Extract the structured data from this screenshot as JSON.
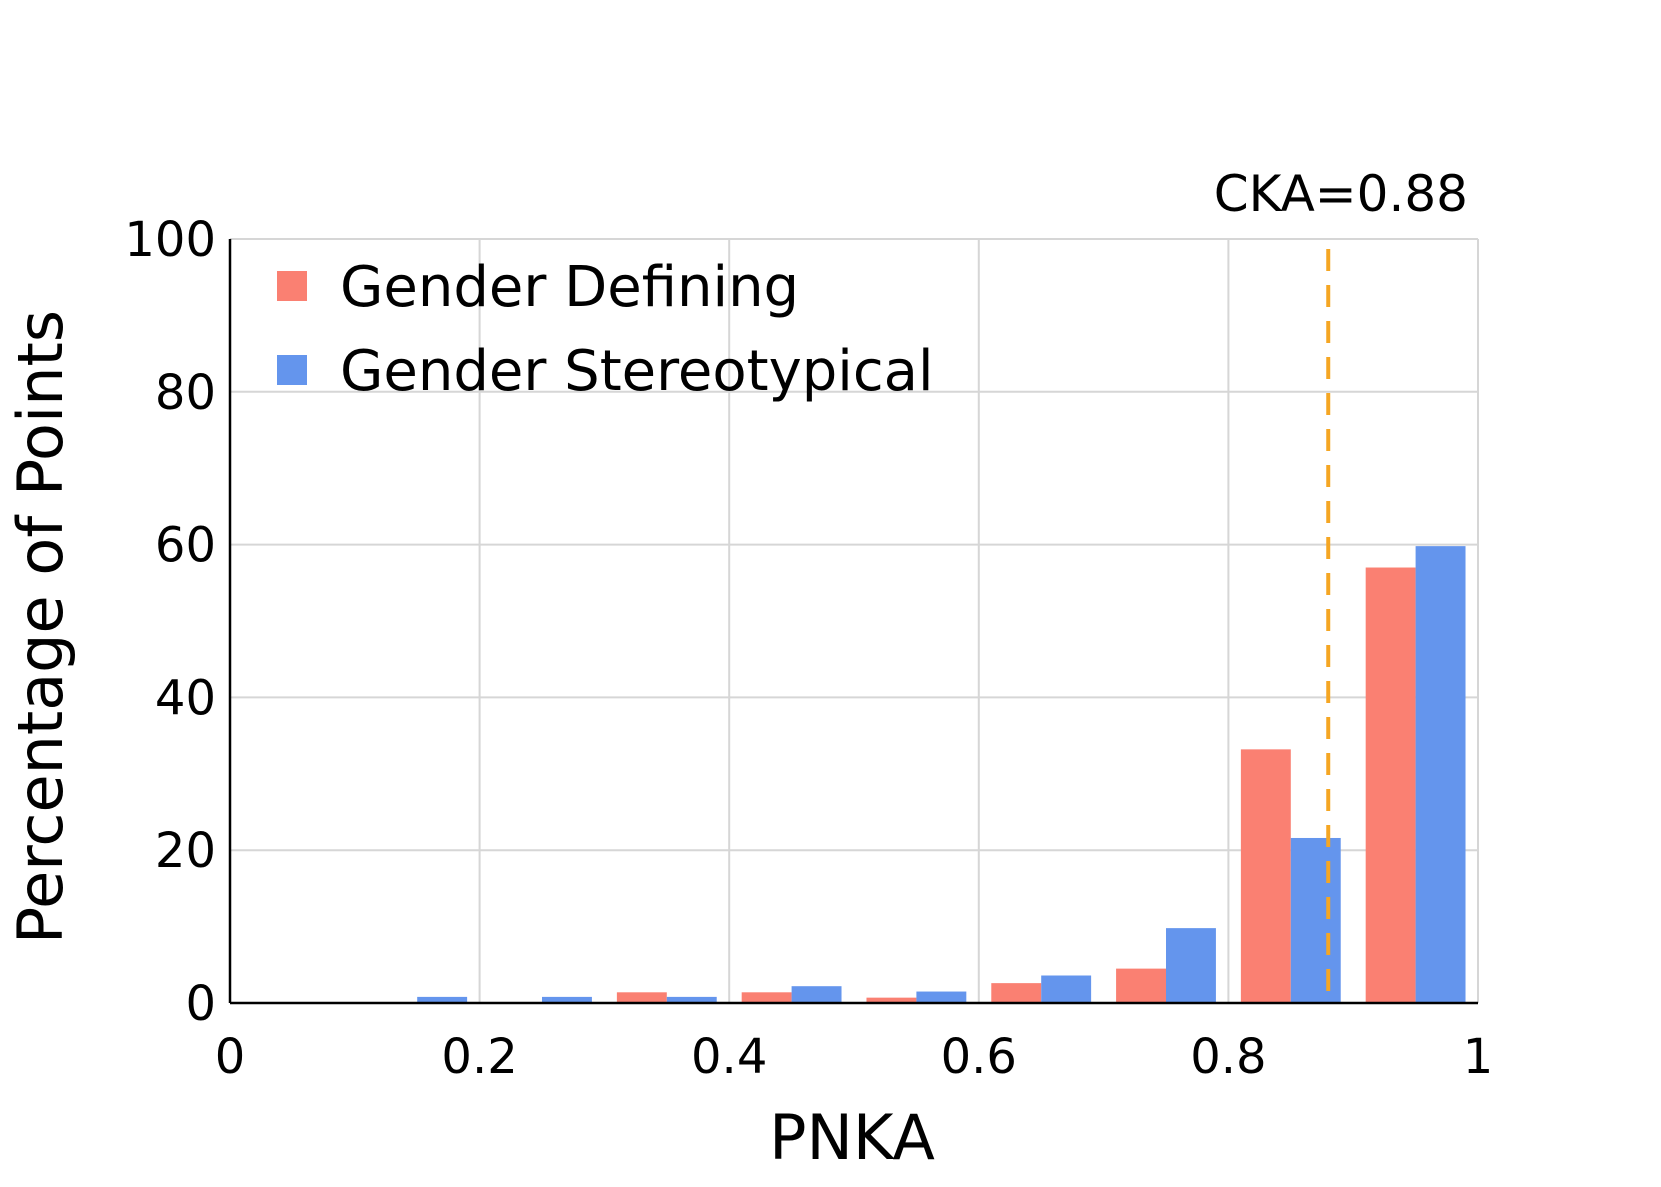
{
  "chart_data": {
    "type": "bar",
    "title": "",
    "xlabel": "PNKA",
    "ylabel": "Percentage of Points",
    "xlim": [
      0,
      1
    ],
    "ylim": [
      0,
      100
    ],
    "grid": true,
    "legend_position": "top-left",
    "x_ticks": [
      {
        "value": 0,
        "label": "0"
      },
      {
        "value": 0.2,
        "label": "0.2"
      },
      {
        "value": 0.4,
        "label": "0.4"
      },
      {
        "value": 0.6,
        "label": "0.6"
      },
      {
        "value": 0.8,
        "label": "0.8"
      },
      {
        "value": 1,
        "label": "1"
      }
    ],
    "y_ticks": [
      {
        "value": 0,
        "label": "0"
      },
      {
        "value": 20,
        "label": "20"
      },
      {
        "value": 40,
        "label": "40"
      },
      {
        "value": 60,
        "label": "60"
      },
      {
        "value": 80,
        "label": "80"
      },
      {
        "value": 100,
        "label": "100"
      }
    ],
    "bin_edges": [
      0,
      0.1,
      0.2,
      0.3,
      0.4,
      0.5,
      0.6,
      0.7,
      0.8,
      0.9,
      1.0
    ],
    "series": [
      {
        "name": "Gender Defining",
        "color": "#fa8072",
        "values": [
          0,
          0,
          0,
          1.4,
          1.4,
          0.7,
          2.6,
          4.5,
          33.2,
          57.0
        ]
      },
      {
        "name": "Gender Stereotypical",
        "color": "#6495ed",
        "values": [
          0,
          0.8,
          0.8,
          0.8,
          2.2,
          1.5,
          3.6,
          9.8,
          21.6,
          59.8
        ]
      }
    ],
    "annotations": [
      {
        "type": "vline",
        "x": 0.88,
        "label": "CKA=0.88",
        "color": "#f5a623",
        "style": "dashed"
      }
    ]
  }
}
